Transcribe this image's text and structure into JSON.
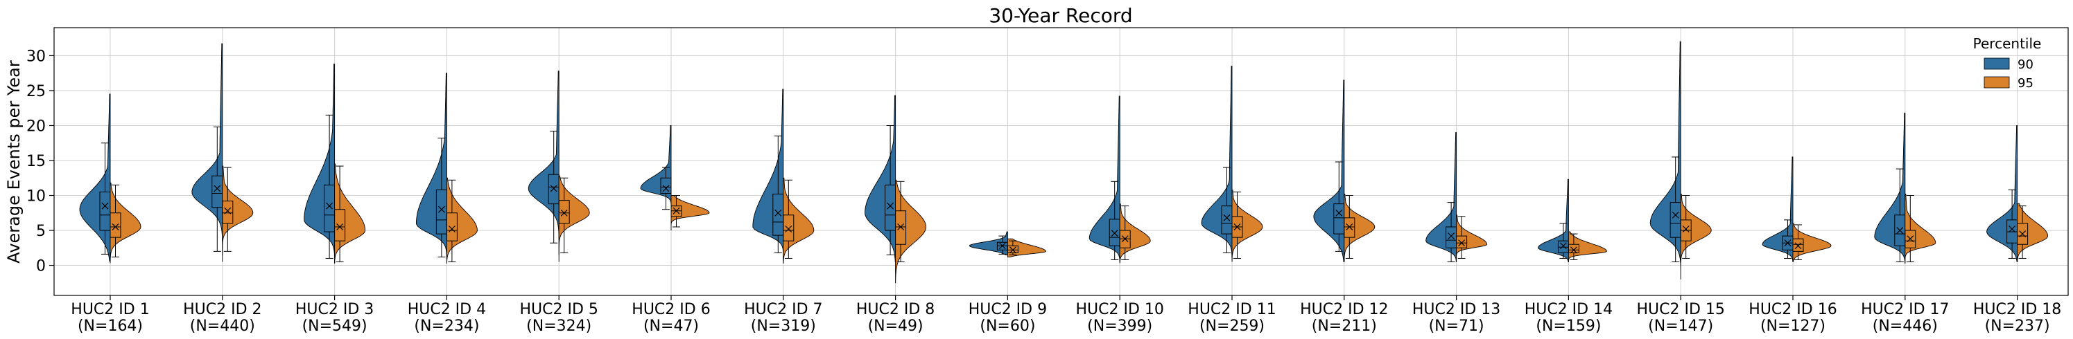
{
  "chart_data": {
    "type": "violin",
    "title": "30-Year Record",
    "ylabel": "Average Events per Year",
    "xlabel": "",
    "ylim": [
      -4.3,
      34
    ],
    "yticks": [
      0,
      5,
      10,
      15,
      20,
      25,
      30
    ],
    "grid": true,
    "legend": {
      "title": "Percentile",
      "placement": "top-right",
      "entries": [
        {
          "name": "90",
          "color": "#2f6f9f"
        },
        {
          "name": "95",
          "color": "#d9822b"
        }
      ]
    },
    "categories": [
      {
        "label": "HUC2 ID 1",
        "n": "(N=164)"
      },
      {
        "label": "HUC2 ID 2",
        "n": "(N=440)"
      },
      {
        "label": "HUC2 ID 3",
        "n": "(N=549)"
      },
      {
        "label": "HUC2 ID 4",
        "n": "(N=234)"
      },
      {
        "label": "HUC2 ID 5",
        "n": "(N=324)"
      },
      {
        "label": "HUC2 ID 6",
        "n": "(N=47)"
      },
      {
        "label": "HUC2 ID 7",
        "n": "(N=319)"
      },
      {
        "label": "HUC2 ID 8",
        "n": "(N=49)"
      },
      {
        "label": "HUC2 ID 9",
        "n": "(N=60)"
      },
      {
        "label": "HUC2 ID 10",
        "n": "(N=399)"
      },
      {
        "label": "HUC2 ID 11",
        "n": "(N=259)"
      },
      {
        "label": "HUC2 ID 12",
        "n": "(N=211)"
      },
      {
        "label": "HUC2 ID 13",
        "n": "(N=71)"
      },
      {
        "label": "HUC2 ID 14",
        "n": "(N=159)"
      },
      {
        "label": "HUC2 ID 15",
        "n": "(N=147)"
      },
      {
        "label": "HUC2 ID 16",
        "n": "(N=127)"
      },
      {
        "label": "HUC2 ID 17",
        "n": "(N=446)"
      },
      {
        "label": "HUC2 ID 18",
        "n": "(N=237)"
      }
    ],
    "series": [
      {
        "name": "90",
        "color": "#2f6f9f",
        "stats": [
          {
            "whislo": 1.6,
            "q1": 5.0,
            "med": 7.2,
            "mean": 8.5,
            "q3": 10.5,
            "whishi": 17.5,
            "vmin": 0.6,
            "vmax": 24.5,
            "mode": 8.0
          },
          {
            "whislo": 2.0,
            "q1": 8.3,
            "med": 10.3,
            "mean": 11.0,
            "q3": 12.8,
            "whishi": 19.8,
            "vmin": 0.5,
            "vmax": 31.7,
            "mode": 10.5
          },
          {
            "whislo": 1.0,
            "q1": 4.8,
            "med": 7.2,
            "mean": 8.5,
            "q3": 11.5,
            "whishi": 21.5,
            "vmin": 0.3,
            "vmax": 28.8,
            "mode": 6.5
          },
          {
            "whislo": 1.2,
            "q1": 4.5,
            "med": 6.5,
            "mean": 8.0,
            "q3": 10.8,
            "whishi": 18.2,
            "vmin": 0.5,
            "vmax": 27.5,
            "mode": 6.0
          },
          {
            "whislo": 3.2,
            "q1": 8.8,
            "med": 11.2,
            "mean": 11.0,
            "q3": 13.0,
            "whishi": 19.2,
            "vmin": 0.5,
            "vmax": 27.8,
            "mode": 11.0
          },
          {
            "whislo": 8.0,
            "q1": 10.3,
            "med": 11.2,
            "mean": 11.0,
            "q3": 12.5,
            "whishi": 14.0,
            "vmin": 8.0,
            "vmax": 20.0,
            "mode": 11.0
          },
          {
            "whislo": 1.8,
            "q1": 4.3,
            "med": 6.2,
            "mean": 7.5,
            "q3": 10.2,
            "whishi": 18.5,
            "vmin": 0.5,
            "vmax": 25.2,
            "mode": 5.5
          },
          {
            "whislo": 1.5,
            "q1": 5.0,
            "med": 7.2,
            "mean": 8.5,
            "q3": 11.5,
            "whishi": 20.0,
            "vmin": 0.5,
            "vmax": 24.3,
            "mode": 7.5
          },
          {
            "whislo": 1.6,
            "q1": 2.2,
            "med": 2.8,
            "mean": 2.8,
            "q3": 3.3,
            "whishi": 4.2,
            "vmin": 1.5,
            "vmax": 4.8,
            "mode": 2.8
          },
          {
            "whislo": 0.8,
            "q1": 2.8,
            "med": 4.0,
            "mean": 4.6,
            "q3": 6.6,
            "whishi": 12.0,
            "vmin": 0.3,
            "vmax": 24.2,
            "mode": 3.8
          },
          {
            "whislo": 1.8,
            "q1": 4.5,
            "med": 6.0,
            "mean": 6.8,
            "q3": 8.5,
            "whishi": 14.0,
            "vmin": 0.8,
            "vmax": 28.5,
            "mode": 6.0
          },
          {
            "whislo": 2.0,
            "q1": 4.5,
            "med": 6.8,
            "mean": 7.5,
            "q3": 8.8,
            "whishi": 14.8,
            "vmin": 0.5,
            "vmax": 26.5,
            "mode": 7.0
          },
          {
            "whislo": 0.5,
            "q1": 2.5,
            "med": 3.6,
            "mean": 4.2,
            "q3": 5.5,
            "whishi": 9.0,
            "vmin": 0.5,
            "vmax": 19.0,
            "mode": 3.5
          },
          {
            "whislo": 1.0,
            "q1": 1.8,
            "med": 2.6,
            "mean": 2.8,
            "q3": 3.5,
            "whishi": 6.0,
            "vmin": 0.5,
            "vmax": 12.3,
            "mode": 2.5
          },
          {
            "whislo": 0.5,
            "q1": 4.0,
            "med": 6.0,
            "mean": 7.2,
            "q3": 9.0,
            "whishi": 15.5,
            "vmin": -2.0,
            "vmax": 32.0,
            "mode": 6.0
          },
          {
            "whislo": 1.0,
            "q1": 2.2,
            "med": 3.2,
            "mean": 3.2,
            "q3": 4.2,
            "whishi": 6.5,
            "vmin": 0.5,
            "vmax": 15.5,
            "mode": 3.0
          },
          {
            "whislo": 0.5,
            "q1": 2.8,
            "med": 4.5,
            "mean": 5.0,
            "q3": 7.2,
            "whishi": 13.8,
            "vmin": 0.3,
            "vmax": 21.8,
            "mode": 4.0
          },
          {
            "whislo": 1.0,
            "q1": 3.2,
            "med": 4.8,
            "mean": 5.2,
            "q3": 6.5,
            "whishi": 10.8,
            "vmin": 0.5,
            "vmax": 20.0,
            "mode": 4.8
          }
        ]
      },
      {
        "name": "95",
        "color": "#d9822b",
        "stats": [
          {
            "whislo": 1.2,
            "q1": 4.0,
            "med": 5.5,
            "mean": 5.5,
            "q3": 7.5,
            "whishi": 11.5,
            "vmin": 0.3,
            "vmax": 11.8,
            "mode": 5.5
          },
          {
            "whislo": 2.0,
            "q1": 6.0,
            "med": 7.5,
            "mean": 7.8,
            "q3": 9.2,
            "whishi": 14.0,
            "vmin": 1.5,
            "vmax": 14.2,
            "mode": 7.5
          },
          {
            "whislo": 0.5,
            "q1": 3.5,
            "med": 5.5,
            "mean": 5.5,
            "q3": 8.0,
            "whishi": 14.2,
            "vmin": 0.3,
            "vmax": 14.5,
            "mode": 5.0
          },
          {
            "whislo": 0.5,
            "q1": 3.5,
            "med": 5.0,
            "mean": 5.2,
            "q3": 7.5,
            "whishi": 12.2,
            "vmin": 0.3,
            "vmax": 12.5,
            "mode": 5.0
          },
          {
            "whislo": 1.8,
            "q1": 6.0,
            "med": 7.5,
            "mean": 7.5,
            "q3": 9.3,
            "whishi": 12.5,
            "vmin": 1.5,
            "vmax": 12.8,
            "mode": 7.5
          },
          {
            "whislo": 5.5,
            "q1": 7.0,
            "med": 7.8,
            "mean": 7.8,
            "q3": 8.5,
            "whishi": 10.0,
            "vmin": 5.0,
            "vmax": 10.0,
            "mode": 7.5
          },
          {
            "whislo": 1.0,
            "q1": 3.5,
            "med": 5.0,
            "mean": 5.2,
            "q3": 7.2,
            "whishi": 12.2,
            "vmin": 0.3,
            "vmax": 12.5,
            "mode": 5.0
          },
          {
            "whislo": 0.5,
            "q1": 3.0,
            "med": 5.5,
            "mean": 5.5,
            "q3": 7.8,
            "whishi": 12.0,
            "vmin": -2.5,
            "vmax": 12.2,
            "mode": 5.5
          },
          {
            "whislo": 1.5,
            "q1": 1.8,
            "med": 2.2,
            "mean": 2.2,
            "q3": 2.8,
            "whishi": 3.5,
            "vmin": 1.2,
            "vmax": 3.8,
            "mode": 2.0
          },
          {
            "whislo": 0.8,
            "q1": 2.5,
            "med": 3.8,
            "mean": 3.8,
            "q3": 5.0,
            "whishi": 8.5,
            "vmin": 0.5,
            "vmax": 8.8,
            "mode": 3.5
          },
          {
            "whislo": 1.0,
            "q1": 4.0,
            "med": 5.5,
            "mean": 5.5,
            "q3": 7.0,
            "whishi": 10.5,
            "vmin": 0.5,
            "vmax": 10.8,
            "mode": 5.5
          },
          {
            "whislo": 1.0,
            "q1": 4.0,
            "med": 5.5,
            "mean": 5.5,
            "q3": 6.8,
            "whishi": 10.0,
            "vmin": 0.5,
            "vmax": 10.2,
            "mode": 5.5
          },
          {
            "whislo": 1.0,
            "q1": 2.5,
            "med": 3.2,
            "mean": 3.2,
            "q3": 4.2,
            "whishi": 7.0,
            "vmin": 0.5,
            "vmax": 7.2,
            "mode": 3.0
          },
          {
            "whislo": 0.8,
            "q1": 1.8,
            "med": 2.2,
            "mean": 2.2,
            "q3": 3.0,
            "whishi": 4.5,
            "vmin": 0.5,
            "vmax": 4.8,
            "mode": 2.0
          },
          {
            "whislo": 1.0,
            "q1": 3.5,
            "med": 5.0,
            "mean": 5.2,
            "q3": 6.5,
            "whishi": 10.0,
            "vmin": 0.5,
            "vmax": 10.2,
            "mode": 5.0
          },
          {
            "whislo": 0.8,
            "q1": 2.0,
            "med": 3.0,
            "mean": 2.8,
            "q3": 3.8,
            "whishi": 5.8,
            "vmin": 0.5,
            "vmax": 6.0,
            "mode": 2.8
          },
          {
            "whislo": 0.5,
            "q1": 2.5,
            "med": 3.5,
            "mean": 3.8,
            "q3": 5.0,
            "whishi": 10.0,
            "vmin": 0.3,
            "vmax": 10.2,
            "mode": 3.2
          },
          {
            "whislo": 1.0,
            "q1": 3.0,
            "med": 4.2,
            "mean": 4.5,
            "q3": 6.0,
            "whishi": 8.5,
            "vmin": 0.5,
            "vmax": 8.8,
            "mode": 4.2
          }
        ]
      }
    ]
  }
}
